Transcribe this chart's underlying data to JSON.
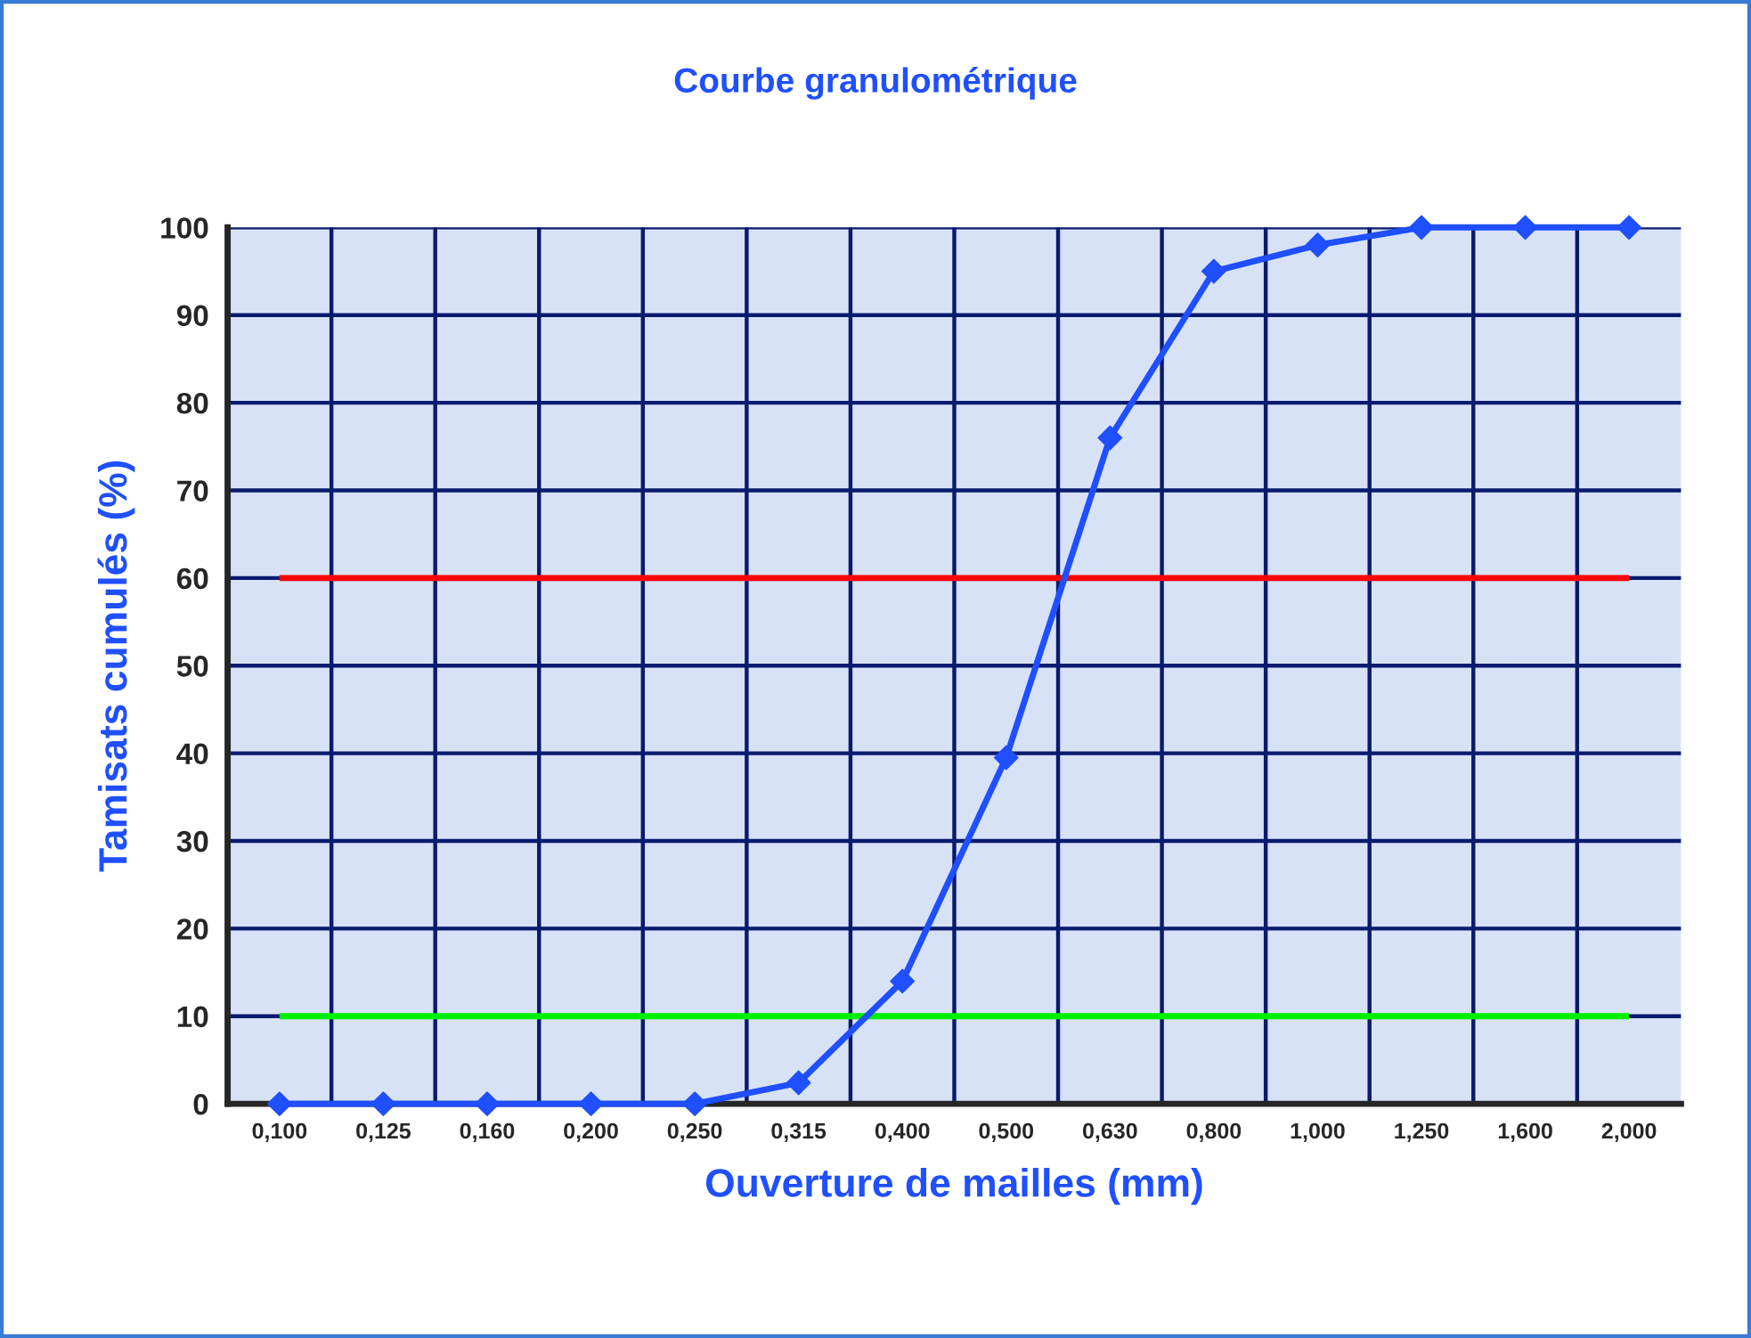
{
  "chart_data": {
    "type": "line",
    "title": "Courbe granulométrique",
    "xlabel": "Ouverture de mailles (mm)",
    "ylabel": "Tamisats cumulés (%)",
    "categories": [
      "0,100",
      "0,125",
      "0,160",
      "0,200",
      "0,250",
      "0,315",
      "0,400",
      "0,500",
      "0,630",
      "0,800",
      "1,000",
      "1,250",
      "1,600",
      "2,000"
    ],
    "series": [
      {
        "color": "#1f4fff",
        "values": [
          0,
          0,
          0,
          0,
          0,
          2.4,
          14,
          39.5,
          76,
          95,
          98,
          100,
          100,
          100
        ]
      }
    ],
    "ylim": [
      0,
      100
    ],
    "yticks": [
      0,
      10,
      20,
      30,
      40,
      50,
      60,
      70,
      80,
      90,
      100
    ],
    "ref_lines": [
      {
        "axis": "y",
        "value": 60,
        "color": "#ff0000"
      },
      {
        "axis": "y",
        "value": 10,
        "color": "#00ee00"
      }
    ],
    "grid": true,
    "marker": "diamond",
    "line_style": "solid",
    "legend": false
  }
}
